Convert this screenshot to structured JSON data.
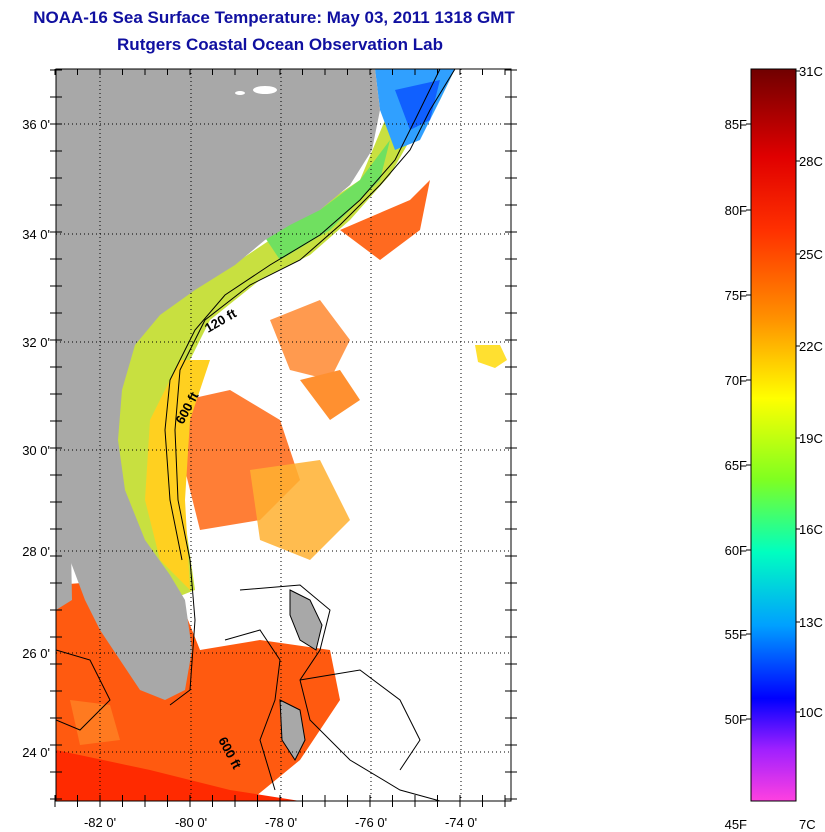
{
  "title": "NOAA-16 Sea Surface Temperature:  May 03, 2011 1318 GMT",
  "subtitle": "Rutgers Coastal Ocean Observation Lab",
  "map": {
    "lon_ticks": [
      "-82 0'",
      "-80 0'",
      "-78 0'",
      "-76 0'",
      "-74 0'"
    ],
    "lat_ticks": [
      "36 0'",
      "34 0'",
      "32 0'",
      "30 0'",
      "28 0'",
      "26 0'",
      "24 0'"
    ],
    "contour_labels": [
      "120 ft",
      "600 ft",
      "600 ft"
    ],
    "land_color": "#a8a8a8",
    "contour_color": "#000000"
  },
  "colorbar": {
    "fahrenheit": [
      "85F",
      "80F",
      "75F",
      "70F",
      "65F",
      "60F",
      "55F",
      "50F",
      "45F"
    ],
    "celsius": [
      "31C",
      "28C",
      "25C",
      "22C",
      "19C",
      "16C",
      "13C",
      "10C",
      "7C"
    ],
    "colors": [
      "#7a0000",
      "#ff0000",
      "#ff8000",
      "#ffff00",
      "#80ff00",
      "#00ffff",
      "#0080ff",
      "#0000ff",
      "#ff40ff"
    ]
  }
}
